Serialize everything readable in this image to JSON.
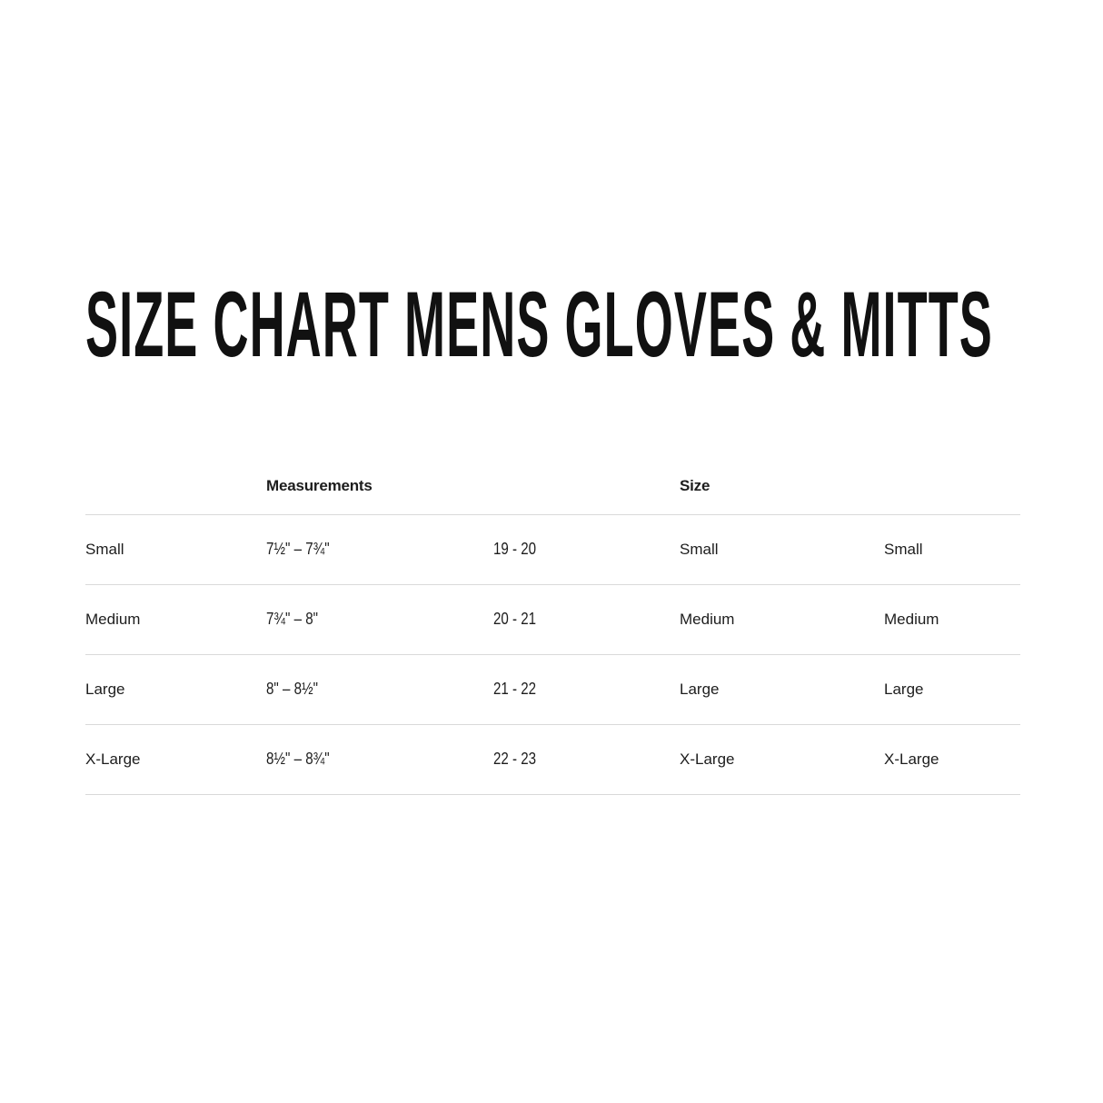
{
  "page": {
    "title": "SIZE CHART MENS GLOVES & MITTS"
  },
  "table": {
    "headers": {
      "measurements": "Measurements",
      "size": "Size"
    },
    "rows": [
      {
        "label": "Small",
        "inches": "7½\" – 7¾\"",
        "cm": "19 - 20",
        "size_a": "Small",
        "size_b": "Small"
      },
      {
        "label": "Medium",
        "inches": "7¾\" – 8\"",
        "cm": "20 - 21",
        "size_a": "Medium",
        "size_b": "Medium"
      },
      {
        "label": "Large",
        "inches": "8\" – 8½\"",
        "cm": "21 - 22",
        "size_a": "Large",
        "size_b": "Large"
      },
      {
        "label": "X-Large",
        "inches": "8½\" – 8¾\"",
        "cm": "22 - 23",
        "size_a": "X-Large",
        "size_b": "X-Large"
      }
    ],
    "colors": {
      "text": "#1d1d1d",
      "divider": "#d9d9d9"
    }
  }
}
